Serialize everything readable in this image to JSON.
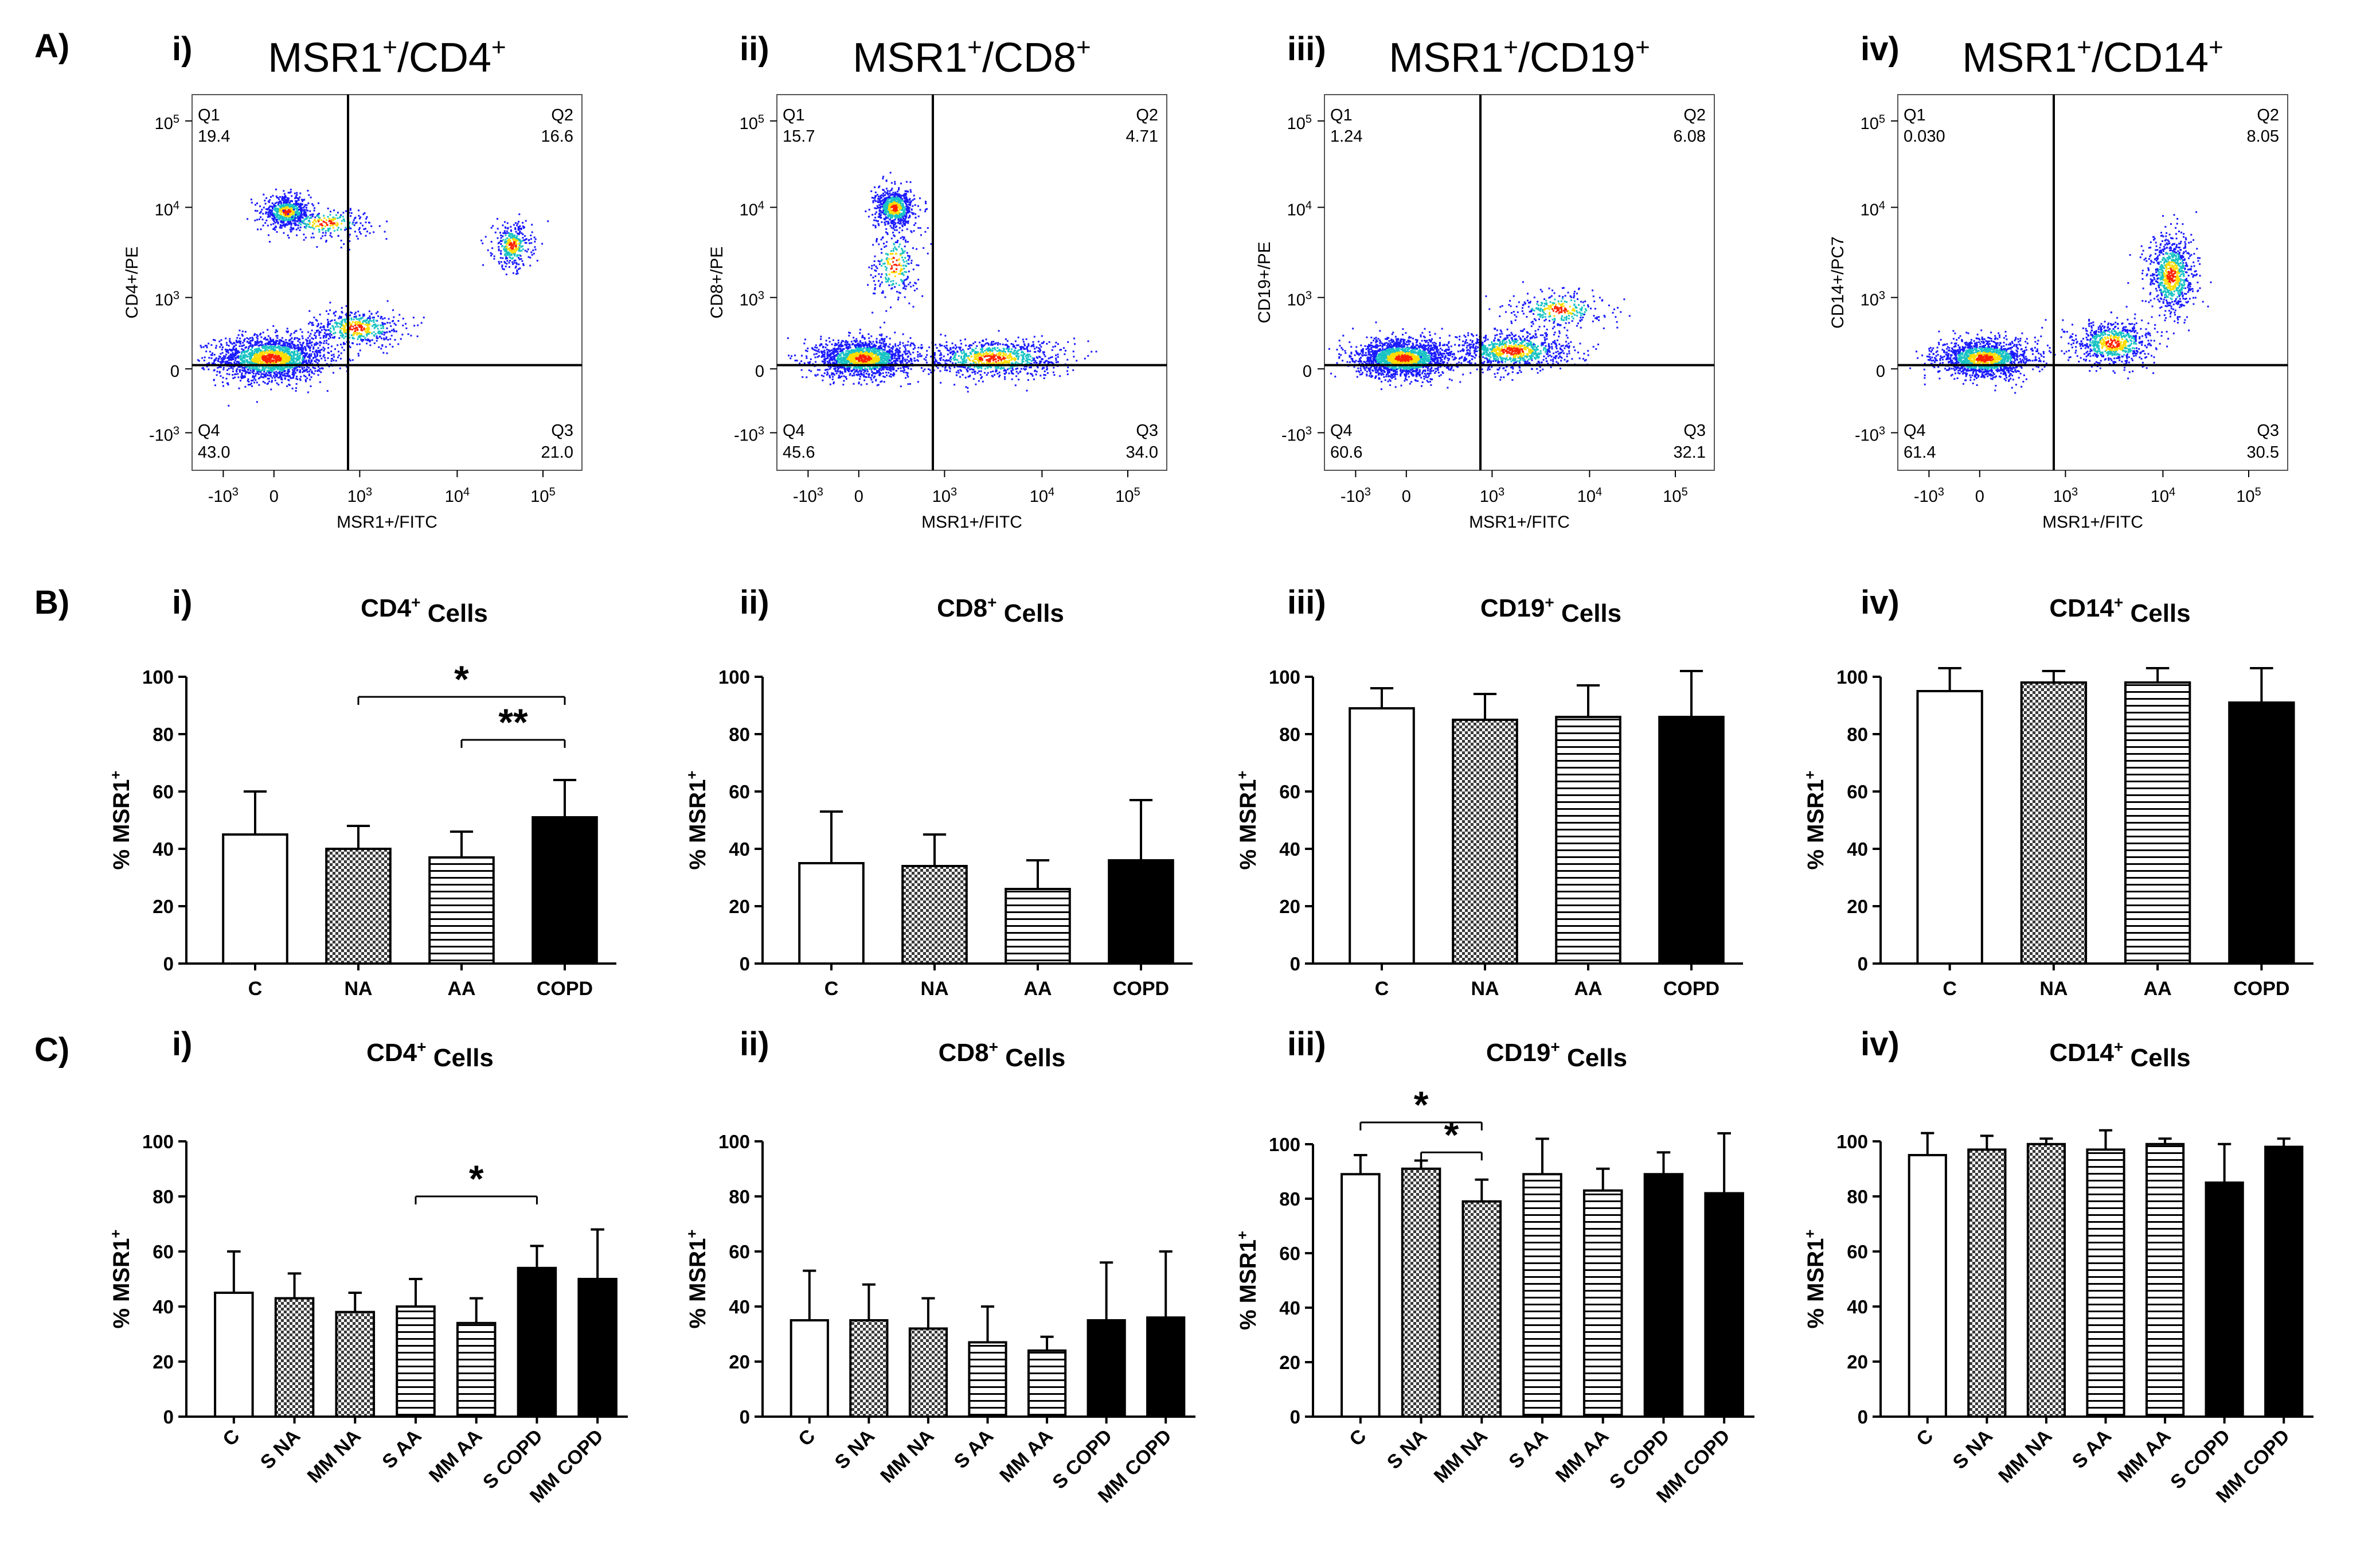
{
  "row_labels": [
    "A)",
    "B)",
    "C)"
  ],
  "panel_labels": [
    "i)",
    "ii)",
    "iii)",
    "iv)"
  ],
  "colors": {
    "dot_low": "#1a1aff",
    "dot_mid": "#19c3c3",
    "dot_high": "#ffdd00",
    "dot_peak": "#ff2200",
    "bar_outline": "#000000"
  },
  "chart_data": [
    {
      "type": "scatter",
      "id": "A-i",
      "title_main": "MSR1",
      "title_marker": "CD4",
      "title_sup": "+",
      "xlabel": "MSR1+/FITC",
      "ylabel": "CD4+/PE",
      "x_ticks": [
        "-10",
        "0",
        "10",
        "10",
        "10"
      ],
      "x_tick_exp": [
        "3",
        "",
        "3",
        "4",
        "5"
      ],
      "y_ticks": [
        "-10",
        "0",
        "10",
        "10",
        "10"
      ],
      "y_tick_exp": [
        "3",
        "",
        "3",
        "4",
        "5"
      ],
      "quadrants": [
        {
          "name": "Q1",
          "value": "19.4"
        },
        {
          "name": "Q2",
          "value": "16.6"
        },
        {
          "name": "Q3",
          "value": "21.0"
        },
        {
          "name": "Q4",
          "value": "43.0"
        }
      ],
      "clusters": [
        {
          "x": 0.2,
          "y": 0.3,
          "sx": 0.14,
          "sy": 0.06,
          "n": 1800
        },
        {
          "x": 0.42,
          "y": 0.38,
          "sx": 0.12,
          "sy": 0.05,
          "n": 500
        },
        {
          "x": 0.82,
          "y": 0.6,
          "sx": 0.05,
          "sy": 0.06,
          "n": 350
        },
        {
          "x": 0.24,
          "y": 0.69,
          "sx": 0.06,
          "sy": 0.04,
          "n": 600
        },
        {
          "x": 0.34,
          "y": 0.66,
          "sx": 0.12,
          "sy": 0.04,
          "n": 250
        }
      ]
    },
    {
      "type": "scatter",
      "id": "A-ii",
      "title_main": "MSR1",
      "title_marker": "CD8",
      "title_sup": "+",
      "xlabel": "MSR1+/FITC",
      "ylabel": "CD8+/PE",
      "x_ticks": [
        "-10",
        "0",
        "10",
        "10",
        "10"
      ],
      "x_tick_exp": [
        "3",
        "",
        "3",
        "4",
        "5"
      ],
      "y_ticks": [
        "-10",
        "0",
        "10",
        "10",
        "10"
      ],
      "y_tick_exp": [
        "3",
        "",
        "3",
        "4",
        "5"
      ],
      "quadrants": [
        {
          "name": "Q1",
          "value": "15.7"
        },
        {
          "name": "Q2",
          "value": "4.71"
        },
        {
          "name": "Q3",
          "value": "34.0"
        },
        {
          "name": "Q4",
          "value": "45.6"
        }
      ],
      "clusters": [
        {
          "x": 0.22,
          "y": 0.3,
          "sx": 0.12,
          "sy": 0.05,
          "n": 1600
        },
        {
          "x": 0.55,
          "y": 0.3,
          "sx": 0.18,
          "sy": 0.05,
          "n": 900
        },
        {
          "x": 0.3,
          "y": 0.7,
          "sx": 0.05,
          "sy": 0.05,
          "n": 700
        },
        {
          "x": 0.3,
          "y": 0.55,
          "sx": 0.06,
          "sy": 0.1,
          "n": 250
        }
      ]
    },
    {
      "type": "scatter",
      "id": "A-iii",
      "title_main": "MSR1",
      "title_marker": "CD19",
      "title_sup": "+",
      "xlabel": "MSR1+/FITC",
      "ylabel": "CD19+/PE",
      "x_ticks": [
        "-10",
        "0",
        "10",
        "10",
        "10"
      ],
      "x_tick_exp": [
        "3",
        "",
        "3",
        "4",
        "5"
      ],
      "y_ticks": [
        "-10",
        "0",
        "10",
        "10",
        "10"
      ],
      "y_tick_exp": [
        "3",
        "",
        "3",
        "4",
        "5"
      ],
      "quadrants": [
        {
          "name": "Q1",
          "value": "1.24"
        },
        {
          "name": "Q2",
          "value": "6.08"
        },
        {
          "name": "Q3",
          "value": "32.1"
        },
        {
          "name": "Q4",
          "value": "60.6"
        }
      ],
      "clusters": [
        {
          "x": 0.2,
          "y": 0.3,
          "sx": 0.12,
          "sy": 0.05,
          "n": 1800
        },
        {
          "x": 0.48,
          "y": 0.32,
          "sx": 0.15,
          "sy": 0.05,
          "n": 900
        },
        {
          "x": 0.6,
          "y": 0.43,
          "sx": 0.12,
          "sy": 0.05,
          "n": 300
        }
      ]
    },
    {
      "type": "scatter",
      "id": "A-iv",
      "title_main": "MSR1",
      "title_marker": "CD14",
      "title_sup": "+",
      "xlabel": "MSR1+/FITC",
      "ylabel": "CD14+/PC7",
      "x_ticks": [
        "-10",
        "0",
        "10",
        "10",
        "10"
      ],
      "x_tick_exp": [
        "3",
        "",
        "3",
        "4",
        "5"
      ],
      "y_ticks": [
        "-10",
        "0",
        "10",
        "10",
        "10"
      ],
      "y_tick_exp": [
        "3",
        "",
        "3",
        "4",
        "5"
      ],
      "quadrants": [
        {
          "name": "Q1",
          "value": "0.030"
        },
        {
          "name": "Q2",
          "value": "8.05"
        },
        {
          "name": "Q3",
          "value": "30.5"
        },
        {
          "name": "Q4",
          "value": "61.4"
        }
      ],
      "clusters": [
        {
          "x": 0.22,
          "y": 0.3,
          "sx": 0.12,
          "sy": 0.05,
          "n": 1500
        },
        {
          "x": 0.55,
          "y": 0.34,
          "sx": 0.1,
          "sy": 0.06,
          "n": 700
        },
        {
          "x": 0.7,
          "y": 0.52,
          "sx": 0.06,
          "sy": 0.11,
          "n": 800
        }
      ]
    },
    {
      "type": "bar",
      "id": "B-i",
      "title": "CD4",
      "title_sup": "+",
      "title_suffix": " Cells",
      "ylabel": "% MSR1",
      "ylabel_sup": "+",
      "ylim": [
        0,
        100
      ],
      "y_ticks": [
        "0",
        "20",
        "40",
        "60",
        "80",
        "100"
      ],
      "categories": [
        "C",
        "NA",
        "AA",
        "COPD"
      ],
      "values": [
        45,
        40,
        37,
        51
      ],
      "errors": [
        15,
        8,
        9,
        13
      ],
      "patterns": [
        "open",
        "checker",
        "hstripe",
        "solid"
      ],
      "significance": [
        {
          "from": 1,
          "to": 3,
          "label": "*",
          "y": 93
        },
        {
          "from": 2,
          "to": 3,
          "label": "**",
          "y": 78
        }
      ]
    },
    {
      "type": "bar",
      "id": "B-ii",
      "title": "CD8",
      "title_sup": "+",
      "title_suffix": " Cells",
      "ylabel": "% MSR1",
      "ylabel_sup": "+",
      "ylim": [
        0,
        100
      ],
      "y_ticks": [
        "0",
        "20",
        "40",
        "60",
        "80",
        "100"
      ],
      "categories": [
        "C",
        "NA",
        "AA",
        "COPD"
      ],
      "values": [
        35,
        34,
        26,
        36
      ],
      "errors": [
        18,
        11,
        10,
        21
      ],
      "patterns": [
        "open",
        "checker",
        "hstripe",
        "solid"
      ],
      "significance": []
    },
    {
      "type": "bar",
      "id": "B-iii",
      "title": "CD19",
      "title_sup": "+",
      "title_suffix": " Cells",
      "ylabel": "% MSR1",
      "ylabel_sup": "+",
      "ylim": [
        0,
        100
      ],
      "y_ticks": [
        "0",
        "20",
        "40",
        "60",
        "80",
        "100"
      ],
      "categories": [
        "C",
        "NA",
        "AA",
        "COPD"
      ],
      "values": [
        89,
        85,
        86,
        86
      ],
      "errors": [
        7,
        9,
        11,
        16
      ],
      "patterns": [
        "open",
        "checker",
        "hstripe",
        "solid"
      ],
      "significance": []
    },
    {
      "type": "bar",
      "id": "B-iv",
      "title": "CD14",
      "title_sup": "+",
      "title_suffix": " Cells",
      "ylabel": "% MSR1",
      "ylabel_sup": "+",
      "ylim": [
        0,
        100
      ],
      "y_ticks": [
        "0",
        "20",
        "40",
        "60",
        "80",
        "100"
      ],
      "categories": [
        "C",
        "NA",
        "AA",
        "COPD"
      ],
      "values": [
        95,
        98,
        98,
        91
      ],
      "errors": [
        8,
        4,
        5,
        12
      ],
      "patterns": [
        "open",
        "checker",
        "hstripe",
        "solid"
      ],
      "significance": []
    },
    {
      "type": "bar",
      "id": "C-i",
      "title": "CD4",
      "title_sup": "+",
      "title_suffix": " Cells",
      "ylabel": "% MSR1",
      "ylabel_sup": "+",
      "ylim": [
        0,
        100
      ],
      "y_ticks": [
        "0",
        "20",
        "40",
        "60",
        "80",
        "100"
      ],
      "categories": [
        "C",
        "S NA",
        "MM NA",
        "S AA",
        "MM AA",
        "S COPD",
        "MM COPD"
      ],
      "values": [
        45,
        43,
        38,
        40,
        34,
        54,
        50
      ],
      "errors": [
        15,
        9,
        7,
        10,
        9,
        8,
        18
      ],
      "patterns": [
        "open",
        "checker",
        "checker",
        "hstripe",
        "hstripe",
        "solid",
        "solid"
      ],
      "significance": [
        {
          "from": 3,
          "to": 5,
          "label": "*",
          "y": 80
        }
      ]
    },
    {
      "type": "bar",
      "id": "C-ii",
      "title": "CD8",
      "title_sup": "+",
      "title_suffix": " Cells",
      "ylabel": "% MSR1",
      "ylabel_sup": "+",
      "ylim": [
        0,
        100
      ],
      "y_ticks": [
        "0",
        "20",
        "40",
        "60",
        "80",
        "100"
      ],
      "categories": [
        "C",
        "S NA",
        "MM NA",
        "S AA",
        "MM AA",
        "S COPD",
        "MM COPD"
      ],
      "values": [
        35,
        35,
        32,
        27,
        24,
        35,
        36
      ],
      "errors": [
        18,
        13,
        11,
        13,
        5,
        21,
        24
      ],
      "patterns": [
        "open",
        "checker",
        "checker",
        "hstripe",
        "hstripe",
        "solid",
        "solid"
      ],
      "significance": []
    },
    {
      "type": "bar",
      "id": "C-iii",
      "title": "CD19",
      "title_sup": "+",
      "title_suffix": " Cells",
      "ylabel": "% MSR1",
      "ylabel_sup": "+",
      "ylim": [
        0,
        100
      ],
      "y_ticks": [
        "0",
        "20",
        "40",
        "60",
        "80",
        "100"
      ],
      "categories": [
        "C",
        "S NA",
        "MM NA",
        "S AA",
        "MM AA",
        "S COPD",
        "MM COPD"
      ],
      "values": [
        89,
        91,
        79,
        89,
        83,
        89,
        82
      ],
      "errors": [
        7,
        3,
        8,
        13,
        8,
        8,
        22
      ],
      "patterns": [
        "open",
        "checker",
        "checker",
        "hstripe",
        "hstripe",
        "solid",
        "solid"
      ],
      "significance": [
        {
          "from": 0,
          "to": 2,
          "label": "*",
          "y": 108
        },
        {
          "from": 1,
          "to": 2,
          "label": "*",
          "y": 97
        }
      ]
    },
    {
      "type": "bar",
      "id": "C-iv",
      "title": "CD14",
      "title_sup": "+",
      "title_suffix": " Cells",
      "ylabel": "% MSR1",
      "ylabel_sup": "+",
      "ylim": [
        0,
        100
      ],
      "y_ticks": [
        "0",
        "20",
        "40",
        "60",
        "80",
        "100"
      ],
      "categories": [
        "C",
        "S NA",
        "MM NA",
        "S AA",
        "MM AA",
        "S COPD",
        "MM COPD"
      ],
      "values": [
        95,
        97,
        99,
        97,
        99,
        85,
        98
      ],
      "errors": [
        8,
        5,
        2,
        7,
        2,
        14,
        3
      ],
      "patterns": [
        "open",
        "checker",
        "checker",
        "hstripe",
        "hstripe",
        "solid",
        "solid"
      ],
      "significance": []
    }
  ]
}
